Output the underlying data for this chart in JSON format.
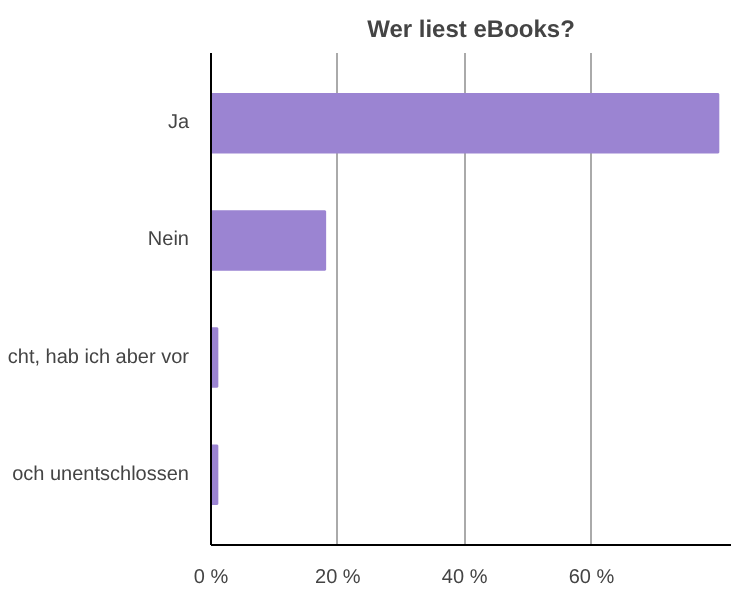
{
  "chart_data": {
    "type": "bar",
    "title": "Wer liest eBooks?",
    "orientation": "horizontal",
    "categories": [
      "Ja",
      "Nein",
      "cht, hab ich aber vor",
      "och unentschlossen"
    ],
    "values": [
      80,
      18,
      1,
      1
    ],
    "color": "#9b84d2",
    "xlim": [
      0,
      82
    ],
    "xticks": [
      {
        "value": 0,
        "label": "0 %"
      },
      {
        "value": 20,
        "label": "20 %"
      },
      {
        "value": 40,
        "label": "40 %"
      },
      {
        "value": 60,
        "label": "60 %"
      }
    ],
    "grid": "x"
  }
}
